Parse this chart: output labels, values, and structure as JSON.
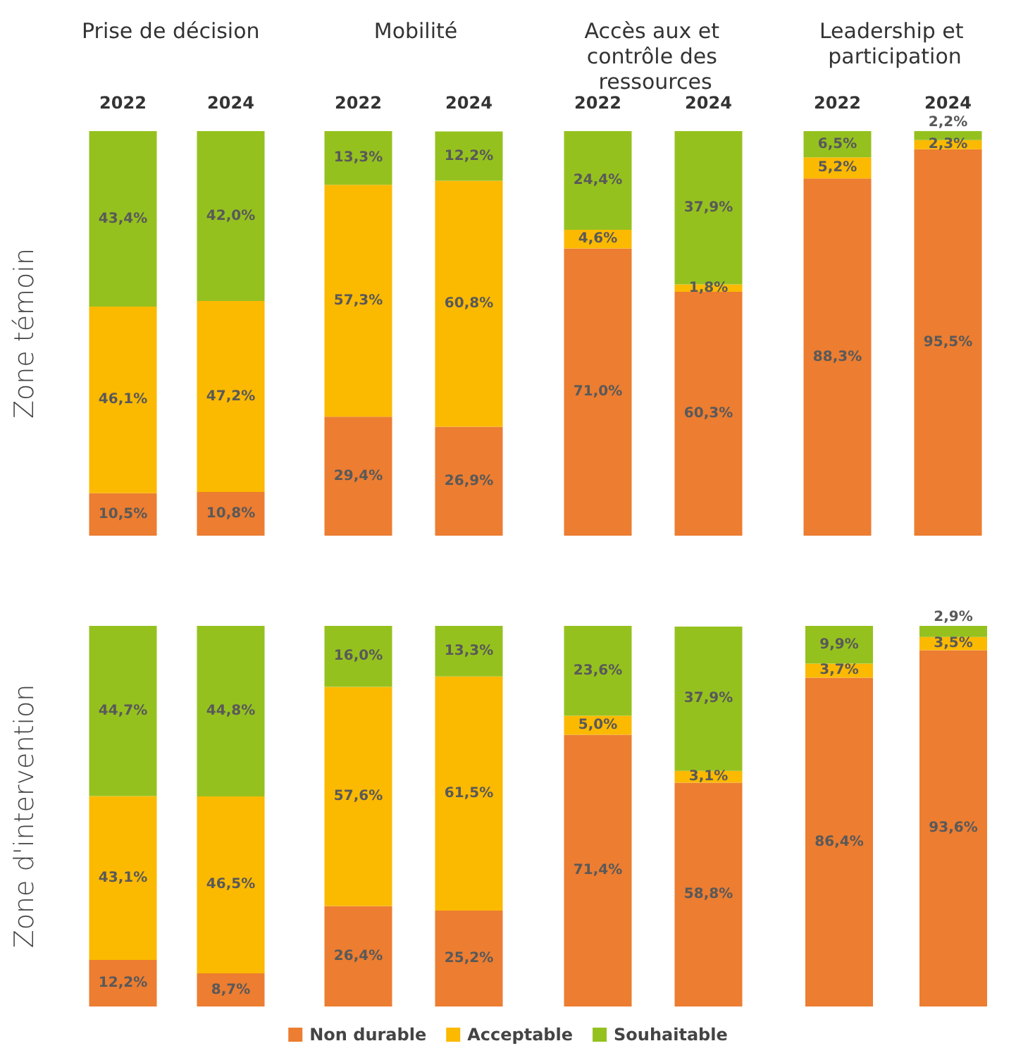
{
  "chart_data": [
    {
      "type": "bar",
      "title": "Prise de décision",
      "ylabel": "Zone témoin",
      "categories": [
        "2022",
        "2024"
      ],
      "stacked": true,
      "tick_labels": "x",
      "series": [
        {
          "color": "#ec7d31",
          "values": [
            10.5,
            10.8
          ],
          "value_labels": [
            "10,5%",
            "10,8%"
          ]
        },
        {
          "color": "#fbb900",
          "values": [
            46.1,
            47.2
          ],
          "value_labels": [
            "46,1%",
            "47,2%"
          ]
        },
        {
          "color": "#95c11f",
          "values": [
            43.4,
            42.0
          ],
          "value_labels": [
            "43,4%",
            "42,0%"
          ]
        }
      ]
    },
    {
      "type": "bar",
      "title": "Mobilité",
      "categories": [
        "2022",
        "2024"
      ],
      "stacked": true,
      "tick_labels": "x",
      "series": [
        {
          "color": "#ec7d31",
          "values": [
            29.4,
            26.9
          ],
          "value_labels": [
            "29,4%",
            "26,9%"
          ]
        },
        {
          "color": "#fbb900",
          "values": [
            57.3,
            60.8
          ],
          "value_labels": [
            "57,3%",
            "60,8%"
          ]
        },
        {
          "color": "#95c11f",
          "values": [
            13.3,
            12.2
          ],
          "value_labels": [
            "13,3%",
            "12,2%"
          ]
        }
      ]
    },
    {
      "type": "bar",
      "title": "Accès aux et contrôle des ressources",
      "categories": [
        "2022",
        "2024"
      ],
      "stacked": true,
      "tick_labels": "x",
      "series": [
        {
          "color": "#ec7d31",
          "values": [
            71.0,
            60.3
          ],
          "value_labels": [
            "71,0%",
            "60,3%"
          ]
        },
        {
          "color": "#fbb900",
          "values": [
            4.6,
            1.8
          ],
          "value_labels": [
            "4,6%",
            "1,8%"
          ]
        },
        {
          "color": "#95c11f",
          "values": [
            24.4,
            37.9
          ],
          "value_labels": [
            "24,4%",
            "37,9%"
          ]
        }
      ]
    },
    {
      "type": "bar",
      "title": "Leadership et participation",
      "categories": [
        "2022",
        "2024"
      ],
      "stacked": true,
      "tick_labels": "x",
      "series": [
        {
          "color": "#ec7d31",
          "values": [
            88.3,
            95.5
          ],
          "value_labels": [
            "88,3%",
            "95,5%"
          ]
        },
        {
          "color": "#fbb900",
          "values": [
            5.2,
            2.3
          ],
          "value_labels": [
            "5,2%",
            "2,3%"
          ]
        },
        {
          "color": "#95c11f",
          "values": [
            6.5,
            2.2
          ],
          "value_labels": [
            "6,5%",
            "2,2%"
          ]
        }
      ]
    },
    {
      "type": "bar",
      "ylabel": "Zone d'intervention",
      "categories": [
        null,
        null
      ],
      "stacked": true,
      "tick_labels": false,
      "series": [
        {
          "color": "#ec7d31",
          "values": [
            12.2,
            8.7
          ],
          "value_labels": [
            "12,2%",
            "8,7%"
          ]
        },
        {
          "color": "#fbb900",
          "values": [
            43.1,
            46.5
          ],
          "value_labels": [
            "43,1%",
            "46,5%"
          ]
        },
        {
          "color": "#95c11f",
          "values": [
            44.7,
            44.8
          ],
          "value_labels": [
            "44,7%",
            "44,8%"
          ]
        }
      ]
    },
    {
      "type": "bar",
      "categories": [
        null,
        null
      ],
      "stacked": true,
      "tick_labels": false,
      "series": [
        {
          "color": "#ec7d31",
          "values": [
            26.4,
            25.2
          ],
          "value_labels": [
            "26,4%",
            "25,2%"
          ]
        },
        {
          "color": "#fbb900",
          "values": [
            57.6,
            61.5
          ],
          "value_labels": [
            "57,6%",
            "61,5%"
          ]
        },
        {
          "color": "#95c11f",
          "values": [
            16.0,
            13.3
          ],
          "value_labels": [
            "16,0%",
            "13,3%"
          ]
        }
      ]
    },
    {
      "type": "bar",
      "categories": [
        null,
        null
      ],
      "stacked": true,
      "tick_labels": false,
      "series": [
        {
          "color": "#ec7d31",
          "values": [
            71.4,
            58.8
          ],
          "value_labels": [
            "71,4%",
            "58,8%"
          ]
        },
        {
          "color": "#fbb900",
          "values": [
            5.0,
            3.1
          ],
          "value_labels": [
            "5,0%",
            "3,1%"
          ]
        },
        {
          "color": "#95c11f",
          "values": [
            23.6,
            37.9
          ],
          "value_labels": [
            "23,6%",
            "37,9%"
          ]
        }
      ]
    },
    {
      "type": "bar",
      "categories": [
        null,
        null
      ],
      "stacked": true,
      "tick_labels": false,
      "legend": "bottom",
      "series": [
        {
          "name": "Non durable",
          "color": "#ec7d31",
          "values": [
            86.4,
            93.6
          ],
          "value_labels": [
            "86,4%",
            "93,6%"
          ]
        },
        {
          "name": "Acceptable",
          "color": "#fbb900",
          "values": [
            3.7,
            3.5
          ],
          "value_labels": [
            "3,7%",
            "3,5%"
          ]
        },
        {
          "name": "Souhaitable",
          "color": "#95c11f",
          "values": [
            9.9,
            2.9
          ],
          "value_labels": [
            "9,9%",
            "2,9%"
          ]
        }
      ]
    }
  ]
}
